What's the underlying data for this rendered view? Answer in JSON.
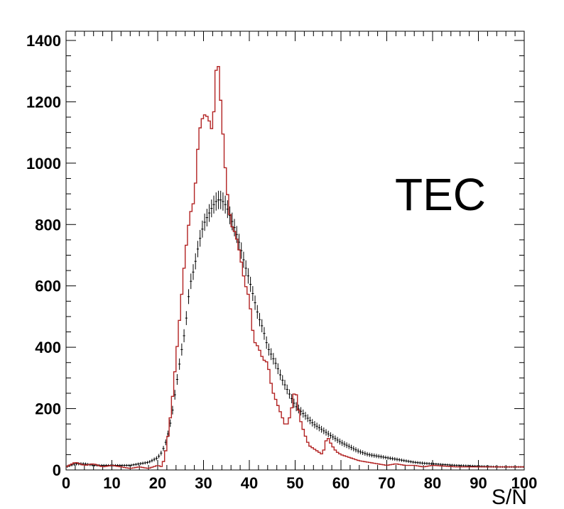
{
  "chart_data": {
    "type": "histogram",
    "xlabel": "S/N",
    "ylabel": "",
    "title": "",
    "annotation": "TEC",
    "xlim": [
      0,
      100
    ],
    "ylim": [
      0,
      1430
    ],
    "x_ticks": [
      "0",
      "10",
      "20",
      "30",
      "40",
      "50",
      "60",
      "70",
      "80",
      "90",
      "100"
    ],
    "y_ticks": [
      "0",
      "200",
      "400",
      "600",
      "800",
      "1000",
      "1200",
      "1400"
    ],
    "grid": false,
    "legend": "none",
    "bin_width": 0.5,
    "series": [
      {
        "style": "step-line",
        "color": "#b22222",
        "x": [
          0,
          2,
          4,
          6,
          8,
          10,
          12,
          14,
          16,
          18,
          20,
          21,
          22,
          23,
          24,
          25,
          26,
          27,
          28,
          29,
          30,
          31,
          32,
          33,
          34,
          35,
          36,
          37,
          38,
          39,
          40,
          41,
          42,
          43,
          44,
          45,
          46,
          47,
          48,
          49,
          50,
          51,
          52,
          53,
          54,
          55,
          56,
          57,
          58,
          59,
          60,
          62,
          64,
          66,
          68,
          70,
          72,
          74,
          76,
          78,
          80,
          85,
          90,
          95,
          100
        ],
        "y": [
          10,
          25,
          15,
          20,
          10,
          15,
          10,
          5,
          10,
          5,
          15,
          10,
          80,
          200,
          360,
          530,
          700,
          830,
          880,
          1100,
          1160,
          1150,
          1100,
          1370,
          1150,
          930,
          800,
          770,
          700,
          610,
          560,
          420,
          400,
          360,
          350,
          260,
          220,
          180,
          140,
          180,
          270,
          170,
          120,
          80,
          70,
          60,
          50,
          110,
          80,
          60,
          50,
          40,
          30,
          25,
          20,
          15,
          20,
          15,
          15,
          10,
          15,
          10,
          10,
          10,
          10
        ]
      },
      {
        "style": "error-bars",
        "color": "#000000",
        "x": [
          0,
          2,
          4,
          6,
          8,
          10,
          12,
          14,
          16,
          18,
          20,
          21,
          22,
          23,
          24,
          25,
          26,
          27,
          28,
          29,
          30,
          31,
          32,
          33,
          34,
          35,
          36,
          37,
          38,
          39,
          40,
          41,
          42,
          43,
          44,
          45,
          46,
          47,
          48,
          49,
          50,
          52,
          54,
          56,
          58,
          60,
          62,
          64,
          66,
          68,
          70,
          72,
          74,
          76,
          78,
          80,
          85,
          90,
          95,
          100
        ],
        "y": [
          10,
          20,
          20,
          15,
          15,
          15,
          15,
          15,
          20,
          25,
          40,
          60,
          100,
          170,
          270,
          370,
          460,
          600,
          660,
          740,
          800,
          830,
          860,
          880,
          880,
          860,
          820,
          780,
          730,
          670,
          620,
          560,
          500,
          460,
          400,
          370,
          340,
          300,
          270,
          240,
          210,
          180,
          150,
          130,
          110,
          90,
          75,
          60,
          50,
          45,
          40,
          35,
          30,
          25,
          22,
          20,
          15,
          12,
          10,
          10
        ],
        "err": [
          4,
          5,
          5,
          4,
          4,
          4,
          4,
          4,
          5,
          5,
          7,
          8,
          10,
          13,
          17,
          19,
          22,
          25,
          26,
          27,
          28,
          29,
          29,
          30,
          30,
          29,
          29,
          28,
          27,
          26,
          25,
          24,
          22,
          21,
          20,
          19,
          18,
          17,
          16,
          15,
          15,
          13,
          12,
          11,
          10,
          10,
          9,
          8,
          7,
          7,
          6,
          6,
          5,
          5,
          5,
          4,
          4,
          4,
          3,
          3
        ]
      }
    ]
  }
}
